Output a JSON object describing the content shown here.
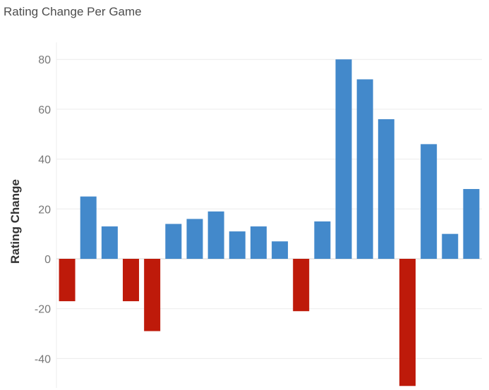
{
  "chart_data": {
    "type": "bar",
    "title": "Rating Change Per Game",
    "ylabel": "Rating Change",
    "xlabel": "",
    "ylim": [
      -52,
      87
    ],
    "yticks": [
      80,
      60,
      40,
      20,
      0,
      -20,
      -40
    ],
    "values": [
      -17,
      25,
      13,
      -17,
      -29,
      14,
      16,
      19,
      11,
      13,
      7,
      -21,
      15,
      80,
      72,
      56,
      -51,
      46,
      10,
      28
    ],
    "grid": true,
    "legend": "none",
    "colors": {
      "positive": "#4389cb",
      "negative": "#be1a0a"
    }
  }
}
